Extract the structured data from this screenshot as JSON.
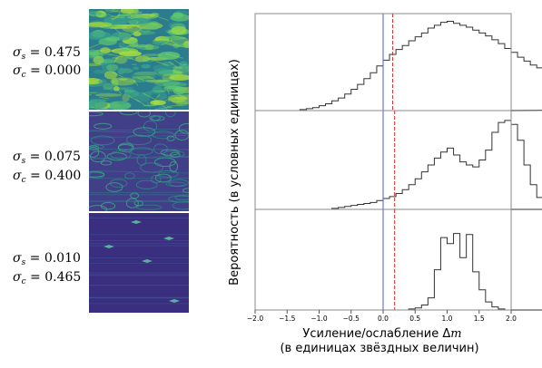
{
  "chart_data": {
    "type": "bar",
    "maps": [
      {
        "sigma_s_label": "σ",
        "sigma_s_sub": "s",
        "sigma_s_value": " = 0.475",
        "sigma_c_label": "σ",
        "sigma_c_sub": "c",
        "sigma_c_value": " = 0.000",
        "palette": [
          "#2b7c8e",
          "#39a38a",
          "#5fca6e",
          "#a6dc3c"
        ]
      },
      {
        "sigma_s_label": "σ",
        "sigma_s_sub": "s",
        "sigma_s_value": " = 0.075",
        "sigma_c_label": "σ",
        "sigma_c_sub": "c",
        "sigma_c_value": " = 0.400",
        "palette": [
          "#413f88",
          "#3d5f9a",
          "#2e8b8c",
          "#3fb285"
        ]
      },
      {
        "sigma_s_label": "σ",
        "sigma_s_sub": "s",
        "sigma_s_value": " = 0.010",
        "sigma_c_label": "σ",
        "sigma_c_sub": "c",
        "sigma_c_value": " = 0.465",
        "palette": [
          "#3a2f7e",
          "#3e3f8d",
          "#4a5aa0",
          "#61c0a0"
        ]
      }
    ],
    "xlabel": "Усиление/ослабление Δm",
    "xlabel2": "(в единицах звёздных величин)",
    "ylabel": "Вероятность (в условных единицах)",
    "xlim": [
      -2.0,
      2.0
    ],
    "xticks": [
      -2.0,
      -1.5,
      -1.0,
      -0.5,
      0.0,
      0.5,
      1.0,
      1.5,
      2.0
    ],
    "xtick_labels": [
      "−2.0",
      "−1.5",
      "−1.0",
      "−0.5",
      "0.0",
      "0.5",
      "1.0",
      "1.5",
      "2.0"
    ],
    "bin_width": 0.1,
    "bin_start": -2.0,
    "reference_line": {
      "x": 0.0,
      "color": "#4a5bd6",
      "style": "solid"
    },
    "series": [
      {
        "mean": 0.15,
        "values": [
          0,
          0,
          0,
          0,
          0,
          0,
          0,
          0.01,
          0.02,
          0.03,
          0.05,
          0.07,
          0.1,
          0.13,
          0.17,
          0.22,
          0.27,
          0.33,
          0.39,
          0.46,
          0.52,
          0.58,
          0.63,
          0.67,
          0.72,
          0.76,
          0.8,
          0.85,
          0.88,
          0.91,
          0.92,
          0.9,
          0.88,
          0.86,
          0.83,
          0.8,
          0.77,
          0.73,
          0.69,
          0.64,
          0.6,
          0.55,
          0.51,
          0.47,
          0.44,
          0.41,
          0.38,
          0.35,
          0.31,
          0.28,
          0.25,
          0.21,
          0.17,
          0.14,
          0.11,
          0.08,
          0.06,
          0.04,
          0.02,
          0.01
        ]
      },
      {
        "mean": 0.18,
        "values": [
          0,
          0,
          0,
          0,
          0,
          0,
          0,
          0,
          0,
          0,
          0,
          0,
          0.01,
          0.02,
          0.03,
          0.04,
          0.05,
          0.06,
          0.07,
          0.09,
          0.11,
          0.13,
          0.16,
          0.2,
          0.25,
          0.31,
          0.38,
          0.45,
          0.52,
          0.58,
          0.62,
          0.55,
          0.48,
          0.45,
          0.43,
          0.5,
          0.6,
          0.78,
          0.88,
          0.9,
          0.86,
          0.7,
          0.45,
          0.25,
          0.12,
          0.05,
          0.02,
          0.01,
          0,
          0,
          0,
          0,
          0,
          0,
          0,
          0,
          0,
          0,
          0,
          0
        ]
      },
      {
        "mean": 0.18,
        "values": [
          0,
          0,
          0,
          0,
          0,
          0,
          0,
          0,
          0,
          0,
          0,
          0,
          0,
          0,
          0,
          0,
          0,
          0,
          0,
          0,
          0,
          0,
          0,
          0,
          0.01,
          0.02,
          0.05,
          0.12,
          0.4,
          0.72,
          0.66,
          0.76,
          0.52,
          0.75,
          0.38,
          0.2,
          0.08,
          0.03,
          0.01,
          0,
          0,
          0,
          0,
          0,
          0,
          0,
          0,
          0,
          0,
          0,
          0,
          0,
          0,
          0,
          0,
          0,
          0,
          0,
          0,
          0
        ]
      }
    ]
  }
}
